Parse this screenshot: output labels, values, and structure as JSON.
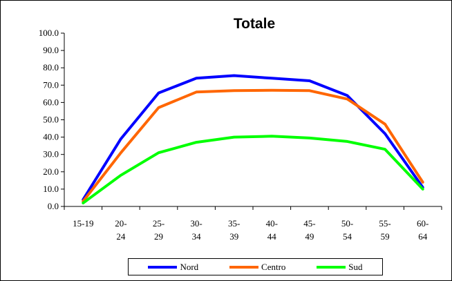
{
  "chart_data": {
    "type": "line",
    "title": "Totale",
    "xlabel": "",
    "ylabel": "",
    "ylim": [
      0,
      100
    ],
    "yticks": [
      "100.0",
      "90.0",
      "80.0",
      "70.0",
      "60.0",
      "50.0",
      "40.0",
      "30.0",
      "20.0",
      "10.0",
      "0.0"
    ],
    "categories": [
      [
        "15-19",
        ""
      ],
      [
        "20-",
        "24"
      ],
      [
        "25-",
        "29"
      ],
      [
        "30-",
        "34"
      ],
      [
        "35-",
        "39"
      ],
      [
        "40-",
        "44"
      ],
      [
        "45-",
        "49"
      ],
      [
        "50-",
        "54"
      ],
      [
        "55-",
        "59"
      ],
      [
        "60-",
        "64"
      ]
    ],
    "series": [
      {
        "name": "Nord",
        "color": "#0000ff",
        "values": [
          4,
          39,
          65.5,
          74,
          75.5,
          74,
          72.5,
          64,
          42,
          11
        ]
      },
      {
        "name": "Centro",
        "color": "#ff6600",
        "values": [
          3,
          31,
          57,
          66,
          66.8,
          67,
          66.8,
          62,
          47.5,
          14
        ]
      },
      {
        "name": "Sud",
        "color": "#00ff00",
        "values": [
          2,
          18,
          31,
          37,
          40,
          40.5,
          39.5,
          37.5,
          33,
          10
        ]
      }
    ],
    "grid": false,
    "legend_position": "bottom"
  }
}
